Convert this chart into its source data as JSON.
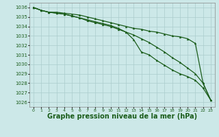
{
  "bg_color": "#cce8e8",
  "grid_color": "#aacccc",
  "line_color": "#1a5c1a",
  "xlabel": "Graphe pression niveau de la mer (hPa)",
  "xlabel_fontsize": 7,
  "ylim": [
    1025.5,
    1036.5
  ],
  "xlim": [
    -0.5,
    23.5
  ],
  "yticks": [
    1026,
    1027,
    1028,
    1029,
    1030,
    1031,
    1032,
    1033,
    1034,
    1035,
    1036
  ],
  "xticks": [
    0,
    1,
    2,
    3,
    4,
    5,
    6,
    7,
    8,
    9,
    10,
    11,
    12,
    13,
    14,
    15,
    16,
    17,
    18,
    19,
    20,
    21,
    22,
    23
  ],
  "series1": [
    1036.0,
    1035.7,
    1035.5,
    1035.5,
    1035.4,
    1035.3,
    1035.2,
    1035.0,
    1034.8,
    1034.6,
    1034.4,
    1034.2,
    1034.0,
    1033.8,
    1033.7,
    1033.5,
    1033.4,
    1033.2,
    1033.0,
    1032.9,
    1032.7,
    1032.2,
    1028.0,
    1026.2
  ],
  "series2": [
    1036.0,
    1035.7,
    1035.5,
    1035.4,
    1035.3,
    1035.1,
    1034.9,
    1034.6,
    1034.4,
    1034.2,
    1034.0,
    1033.7,
    1033.4,
    1033.1,
    1032.7,
    1032.3,
    1031.8,
    1031.3,
    1030.7,
    1030.2,
    1029.6,
    1029.0,
    1028.0,
    1026.2
  ],
  "series3": [
    1036.0,
    1035.7,
    1035.5,
    1035.4,
    1035.3,
    1035.1,
    1034.9,
    1034.7,
    1034.5,
    1034.3,
    1034.1,
    1033.8,
    1033.4,
    1032.6,
    1031.3,
    1031.0,
    1030.4,
    1029.9,
    1029.4,
    1029.0,
    1028.7,
    1028.3,
    1027.5,
    1026.2
  ]
}
